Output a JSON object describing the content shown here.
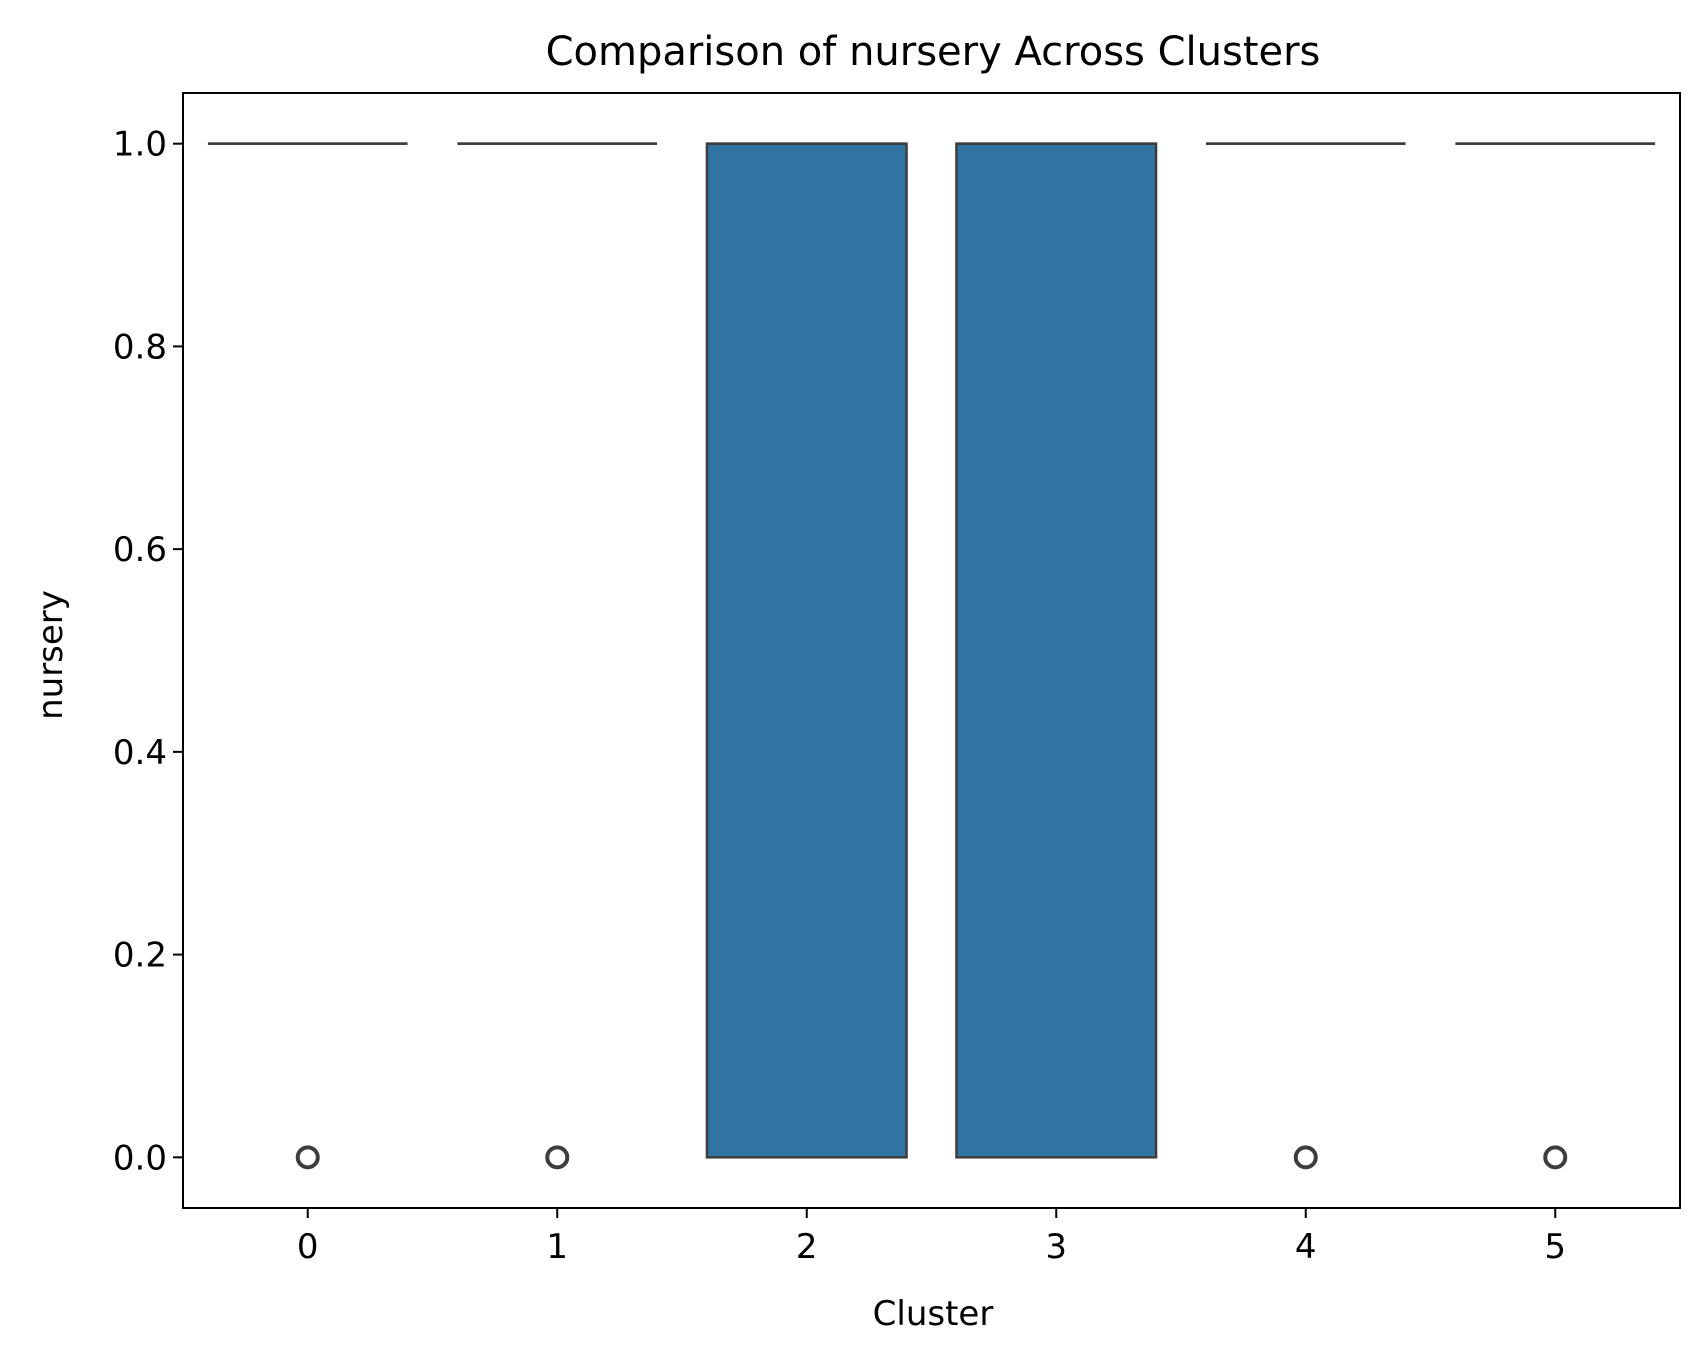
{
  "chart_data": {
    "type": "box",
    "title": "Comparison of nursery Across Clusters",
    "xlabel": "Cluster",
    "ylabel": "nursery",
    "categories": [
      "0",
      "1",
      "2",
      "3",
      "4",
      "5"
    ],
    "boxes": [
      {
        "category": "0",
        "q1": 1.0,
        "median": 1.0,
        "q3": 1.0,
        "whisker_low": 1.0,
        "whisker_high": 1.0,
        "outliers": [
          0.0
        ]
      },
      {
        "category": "1",
        "q1": 1.0,
        "median": 1.0,
        "q3": 1.0,
        "whisker_low": 1.0,
        "whisker_high": 1.0,
        "outliers": [
          0.0
        ]
      },
      {
        "category": "2",
        "q1": 0.0,
        "median": 1.0,
        "q3": 1.0,
        "whisker_low": 0.0,
        "whisker_high": 1.0,
        "outliers": []
      },
      {
        "category": "3",
        "q1": 0.0,
        "median": 1.0,
        "q3": 1.0,
        "whisker_low": 0.0,
        "whisker_high": 1.0,
        "outliers": []
      },
      {
        "category": "4",
        "q1": 1.0,
        "median": 1.0,
        "q3": 1.0,
        "whisker_low": 1.0,
        "whisker_high": 1.0,
        "outliers": [
          0.0
        ]
      },
      {
        "category": "5",
        "q1": 1.0,
        "median": 1.0,
        "q3": 1.0,
        "whisker_low": 1.0,
        "whisker_high": 1.0,
        "outliers": [
          0.0
        ]
      }
    ],
    "yticks": [
      "0.0",
      "0.2",
      "0.4",
      "0.6",
      "0.8",
      "1.0"
    ],
    "ylim": [
      -0.05,
      1.05
    ],
    "grid": false,
    "colors": {
      "box_fill": "#3274a1",
      "box_edge": "#3d3d3d",
      "axis": "#000000"
    }
  }
}
